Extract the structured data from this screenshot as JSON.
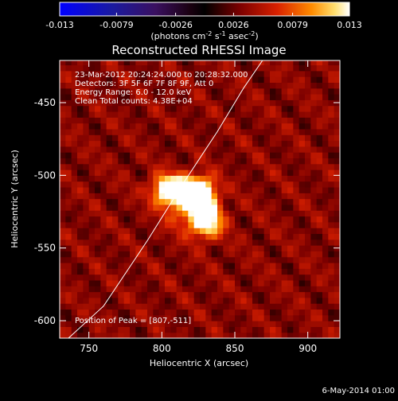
{
  "chart_data": {
    "type": "heatmap",
    "title": "Reconstructed RHESSI Image",
    "colorbar": {
      "tick_labels": [
        "-0.013",
        "-0.0079",
        "-0.0026",
        "0.0026",
        "0.0079",
        "0.013"
      ],
      "range": [
        -0.013,
        0.013
      ],
      "label_prefix": "(photons cm",
      "label_exp1": "-2",
      "label_mid": " s",
      "label_exp2": "-1",
      "label_mid2": " asec",
      "label_exp3": "-2",
      "label_suffix": ")"
    },
    "xlabel": "Heliocentric X (arcsec)",
    "ylabel": "Heliocentric Y (arcsec)",
    "xlim": [
      730,
      922
    ],
    "ylim": [
      -612,
      -421
    ],
    "x_ticks": [
      "750",
      "800",
      "850",
      "900"
    ],
    "x_tick_values": [
      750,
      800,
      850,
      900
    ],
    "y_ticks": [
      "-450",
      "-500",
      "-550",
      "-600"
    ],
    "y_tick_values": [
      -450,
      -500,
      -550,
      -600
    ],
    "annotations": {
      "time": "23-Mar-2012 20:24:24.000 to 20:28:32.000",
      "detectors": "Detectors: 3F 5F 6F 7F 8F 9F, Att 0",
      "energy": "Energy Range: 6.0 - 12.0 keV",
      "clean": "Clean     Total counts: 4.38E+04",
      "peak": "Position of Peak = [807,-511]"
    },
    "peak": [
      807,
      -511
    ],
    "sources": [
      {
        "x": 805,
        "y": -510,
        "amp": 1.0,
        "sx": 8,
        "sy": 7
      },
      {
        "x": 820,
        "y": -509,
        "amp": 0.75,
        "sx": 8,
        "sy": 6
      },
      {
        "x": 829,
        "y": -514,
        "amp": 0.8,
        "sx": 6,
        "sy": 8
      },
      {
        "x": 830,
        "y": -531,
        "amp": 0.9,
        "sx": 8,
        "sy": 8
      },
      {
        "x": 815,
        "y": -523,
        "amp": 0.35,
        "sx": 9,
        "sy": 9
      }
    ],
    "limb_curve": [
      [
        736,
        -612
      ],
      [
        760,
        -590
      ],
      [
        790,
        -545
      ],
      [
        815,
        -505
      ],
      [
        838,
        -470
      ],
      [
        856,
        -440
      ],
      [
        869,
        -421
      ]
    ],
    "grid": false
  },
  "footer": {
    "date": "6-May-2014 01:00"
  }
}
